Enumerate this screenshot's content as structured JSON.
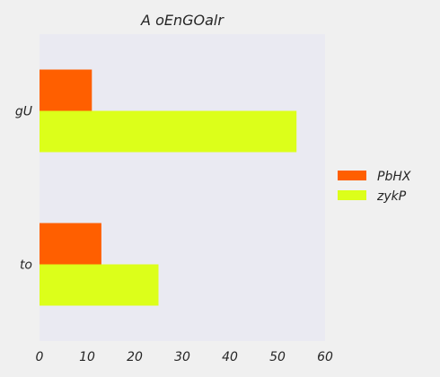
{
  "chart_data": {
    "type": "bar",
    "orientation": "horizontal",
    "title": "A oEnGOalr",
    "xlabel": "",
    "ylabel": "",
    "categories": [
      "gU",
      "to"
    ],
    "series": [
      {
        "name": "PbHX",
        "values": [
          11,
          13
        ],
        "color": "#ff5f00"
      },
      {
        "name": "zykP",
        "values": [
          54,
          25
        ],
        "color": "#dcff1a"
      }
    ],
    "xlim": [
      0,
      60
    ],
    "xticks": [
      "0",
      "10",
      "20",
      "30",
      "40",
      "50",
      "60"
    ],
    "grid": false,
    "legend": "right",
    "plot_background": "#eaeaf2",
    "figure_background": "#f0f0f0"
  }
}
